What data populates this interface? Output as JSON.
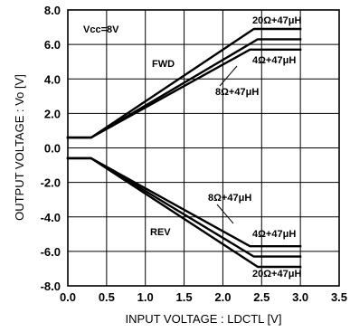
{
  "chart_data": {
    "type": "line",
    "title": "",
    "xlabel": "INPUT VOLTAGE : LDCTL [V]",
    "ylabel": "OUTPUT VOLTAGE : Vo [V]",
    "xlim": [
      0.0,
      3.5
    ],
    "ylim": [
      -8.0,
      8.0
    ],
    "xticks": [
      "0.0",
      "0.5",
      "1.0",
      "1.5",
      "2.0",
      "2.5",
      "3.0",
      "3.5"
    ],
    "yticks": [
      "8.0",
      "6.0",
      "4.0",
      "2.0",
      "0.0",
      "-2.0",
      "-4.0",
      "-6.0",
      "-8.0"
    ],
    "grid": true,
    "series": [
      {
        "group": "FWD",
        "x": [
          0.0,
          0.3,
          2.4,
          3.0
        ],
        "y": [
          0.6,
          0.6,
          6.9,
          6.9
        ]
      },
      {
        "group": "FWD",
        "x": [
          0.0,
          0.3,
          2.45,
          3.0
        ],
        "y": [
          0.6,
          0.6,
          6.3,
          6.3
        ]
      },
      {
        "group": "FWD",
        "x": [
          0.0,
          0.3,
          2.35,
          3.0
        ],
        "y": [
          0.6,
          0.6,
          5.7,
          5.7
        ]
      },
      {
        "group": "REV",
        "x": [
          0.0,
          0.3,
          2.35,
          3.0
        ],
        "y": [
          -0.6,
          -0.6,
          -5.7,
          -5.7
        ]
      },
      {
        "group": "REV",
        "x": [
          0.0,
          0.3,
          2.4,
          3.0
        ],
        "y": [
          -0.6,
          -0.6,
          -6.3,
          -6.3
        ]
      },
      {
        "group": "REV",
        "x": [
          0.0,
          0.3,
          2.45,
          3.0
        ],
        "y": [
          -0.6,
          -0.6,
          -6.9,
          -6.9
        ]
      }
    ],
    "annotations": {
      "condition": "Vcc=8V",
      "fwd": "FWD",
      "rev": "REV",
      "fwd_top": "20Ω+47μH",
      "fwd_bottom": "4Ω+47μH",
      "fwd_mid": "8Ω+47μH",
      "rev_mid": "8Ω+47μH",
      "rev_top": "4Ω+47μH",
      "rev_bottom": "20Ω+47μH"
    }
  }
}
